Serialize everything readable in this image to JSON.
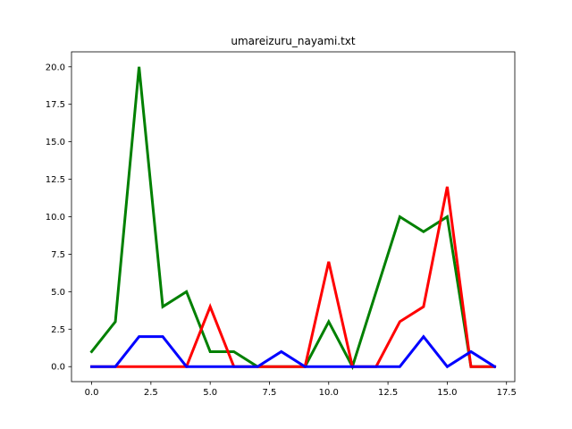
{
  "chart_data": {
    "type": "line",
    "title": "umareizuru_nayami.txt",
    "xlabel": "",
    "ylabel": "",
    "xlim": [
      -0.85,
      17.85
    ],
    "ylim": [
      -1.0,
      21.0
    ],
    "grid": false,
    "legend": "none",
    "x": [
      0,
      1,
      2,
      3,
      4,
      5,
      6,
      7,
      8,
      9,
      10,
      11,
      12,
      13,
      14,
      15,
      16,
      17
    ],
    "x_ticks": [
      0.0,
      2.5,
      5.0,
      7.5,
      10.0,
      12.5,
      15.0,
      17.5
    ],
    "x_tick_labels": [
      "0.0",
      "2.5",
      "5.0",
      "7.5",
      "10.0",
      "12.5",
      "15.0",
      "17.5"
    ],
    "y_ticks": [
      0.0,
      2.5,
      5.0,
      7.5,
      10.0,
      12.5,
      15.0,
      17.5,
      20.0
    ],
    "y_tick_labels": [
      "0.0",
      "2.5",
      "5.0",
      "7.5",
      "10.0",
      "12.5",
      "15.0",
      "17.5",
      "20.0"
    ],
    "series": [
      {
        "color": "#008000",
        "values": [
          1,
          3,
          20,
          4,
          5,
          1,
          1,
          0,
          0,
          0,
          3,
          0,
          5,
          10,
          9,
          10,
          0,
          0
        ]
      },
      {
        "color": "#ff0000",
        "values": [
          0,
          0,
          0,
          0,
          0,
          4,
          0,
          0,
          0,
          0,
          7,
          0,
          0,
          3,
          4,
          12,
          0,
          0
        ]
      },
      {
        "color": "#0000ff",
        "values": [
          0,
          0,
          2,
          2,
          0,
          0,
          0,
          0,
          1,
          0,
          0,
          0,
          0,
          0,
          2,
          0,
          1,
          0
        ]
      }
    ]
  }
}
